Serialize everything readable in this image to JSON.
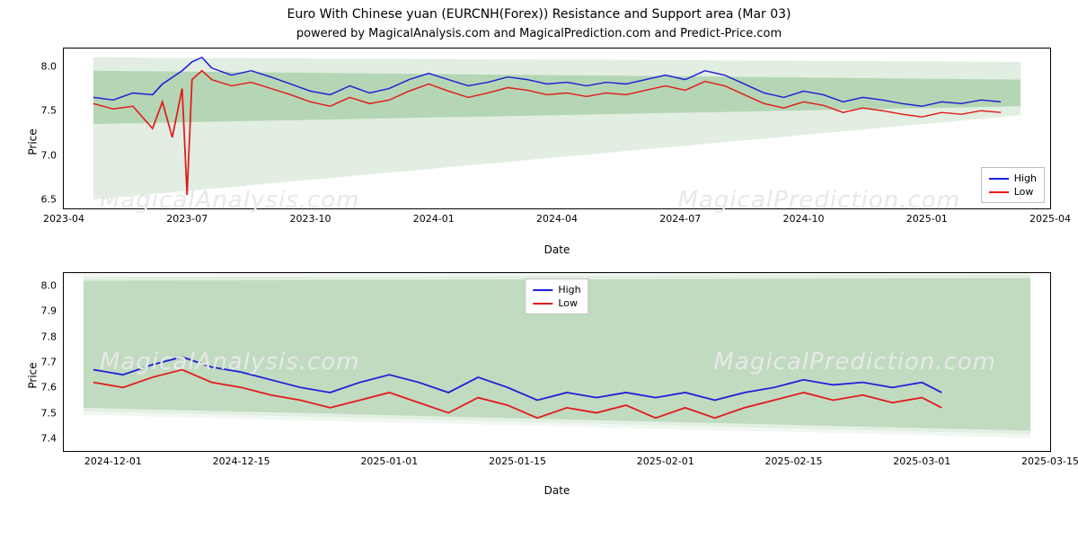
{
  "title": "Euro With Chinese yuan (EURCNH(Forex)) Resistance and Support area (Mar 03)",
  "subtitle": "powered by MagicalAnalysis.com and MagicalPrediction.com and Predict-Price.com",
  "watermarks": [
    "MagicalAnalysis.com",
    "MagicalPrediction.com"
  ],
  "colors": {
    "high": "#1f1fd8",
    "low": "#e41a1c",
    "band_fill": "#c8e0c8",
    "band_fill_dark": "#7fb77f",
    "border": "#000000",
    "text": "#000000",
    "watermark": "#e8e8e8"
  },
  "chart1": {
    "type": "line",
    "ylabel": "Price",
    "xlabel": "Date",
    "ylim": [
      6.4,
      8.2
    ],
    "yticks": [
      6.5,
      7.0,
      7.5,
      8.0
    ],
    "xticks": [
      "2023-04",
      "2023-07",
      "2023-10",
      "2024-01",
      "2024-04",
      "2024-07",
      "2024-10",
      "2025-01",
      "2025-04"
    ],
    "xtick_positions": [
      0.0,
      0.125,
      0.25,
      0.375,
      0.5,
      0.625,
      0.75,
      0.875,
      1.0
    ],
    "legend": [
      {
        "label": "High",
        "color": "#1f1fd8"
      },
      {
        "label": "Low",
        "color": "#e41a1c"
      }
    ],
    "band_top": {
      "y_left_hi": 8.1,
      "y_left_lo": 6.5,
      "y_right_hi": 8.05,
      "y_right_lo": 7.45
    },
    "band_mid": {
      "y_left_hi": 7.95,
      "y_left_lo": 7.35,
      "y_right_hi": 7.85,
      "y_right_lo": 7.55
    },
    "series_high": [
      [
        0.03,
        7.65
      ],
      [
        0.05,
        7.62
      ],
      [
        0.07,
        7.7
      ],
      [
        0.09,
        7.68
      ],
      [
        0.1,
        7.8
      ],
      [
        0.12,
        7.95
      ],
      [
        0.13,
        8.05
      ],
      [
        0.14,
        8.1
      ],
      [
        0.15,
        7.98
      ],
      [
        0.17,
        7.9
      ],
      [
        0.19,
        7.95
      ],
      [
        0.21,
        7.88
      ],
      [
        0.23,
        7.8
      ],
      [
        0.25,
        7.72
      ],
      [
        0.27,
        7.68
      ],
      [
        0.29,
        7.78
      ],
      [
        0.31,
        7.7
      ],
      [
        0.33,
        7.75
      ],
      [
        0.35,
        7.85
      ],
      [
        0.37,
        7.92
      ],
      [
        0.39,
        7.85
      ],
      [
        0.41,
        7.78
      ],
      [
        0.43,
        7.82
      ],
      [
        0.45,
        7.88
      ],
      [
        0.47,
        7.85
      ],
      [
        0.49,
        7.8
      ],
      [
        0.51,
        7.82
      ],
      [
        0.53,
        7.78
      ],
      [
        0.55,
        7.82
      ],
      [
        0.57,
        7.8
      ],
      [
        0.59,
        7.85
      ],
      [
        0.61,
        7.9
      ],
      [
        0.63,
        7.85
      ],
      [
        0.65,
        7.95
      ],
      [
        0.67,
        7.9
      ],
      [
        0.69,
        7.8
      ],
      [
        0.71,
        7.7
      ],
      [
        0.73,
        7.65
      ],
      [
        0.75,
        7.72
      ],
      [
        0.77,
        7.68
      ],
      [
        0.79,
        7.6
      ],
      [
        0.81,
        7.65
      ],
      [
        0.83,
        7.62
      ],
      [
        0.85,
        7.58
      ],
      [
        0.87,
        7.55
      ],
      [
        0.89,
        7.6
      ],
      [
        0.91,
        7.58
      ],
      [
        0.93,
        7.62
      ],
      [
        0.95,
        7.6
      ]
    ],
    "series_low": [
      [
        0.03,
        7.58
      ],
      [
        0.05,
        7.52
      ],
      [
        0.07,
        7.55
      ],
      [
        0.09,
        7.3
      ],
      [
        0.1,
        7.6
      ],
      [
        0.11,
        7.2
      ],
      [
        0.12,
        7.75
      ],
      [
        0.125,
        6.55
      ],
      [
        0.13,
        7.85
      ],
      [
        0.14,
        7.95
      ],
      [
        0.15,
        7.85
      ],
      [
        0.17,
        7.78
      ],
      [
        0.19,
        7.82
      ],
      [
        0.21,
        7.75
      ],
      [
        0.23,
        7.68
      ],
      [
        0.25,
        7.6
      ],
      [
        0.27,
        7.55
      ],
      [
        0.29,
        7.65
      ],
      [
        0.31,
        7.58
      ],
      [
        0.33,
        7.62
      ],
      [
        0.35,
        7.72
      ],
      [
        0.37,
        7.8
      ],
      [
        0.39,
        7.72
      ],
      [
        0.41,
        7.65
      ],
      [
        0.43,
        7.7
      ],
      [
        0.45,
        7.76
      ],
      [
        0.47,
        7.73
      ],
      [
        0.49,
        7.68
      ],
      [
        0.51,
        7.7
      ],
      [
        0.53,
        7.66
      ],
      [
        0.55,
        7.7
      ],
      [
        0.57,
        7.68
      ],
      [
        0.59,
        7.73
      ],
      [
        0.61,
        7.78
      ],
      [
        0.63,
        7.73
      ],
      [
        0.65,
        7.83
      ],
      [
        0.67,
        7.78
      ],
      [
        0.69,
        7.68
      ],
      [
        0.71,
        7.58
      ],
      [
        0.73,
        7.53
      ],
      [
        0.75,
        7.6
      ],
      [
        0.77,
        7.56
      ],
      [
        0.79,
        7.48
      ],
      [
        0.81,
        7.53
      ],
      [
        0.83,
        7.5
      ],
      [
        0.85,
        7.46
      ],
      [
        0.87,
        7.43
      ],
      [
        0.89,
        7.48
      ],
      [
        0.91,
        7.46
      ],
      [
        0.93,
        7.5
      ],
      [
        0.95,
        7.48
      ]
    ]
  },
  "chart2": {
    "type": "line",
    "ylabel": "Price",
    "xlabel": "Date",
    "ylim": [
      7.35,
      8.05
    ],
    "yticks": [
      7.4,
      7.5,
      7.6,
      7.7,
      7.8,
      7.9,
      8.0
    ],
    "xticks": [
      "2024-12-01",
      "2024-12-15",
      "2025-01-01",
      "2025-01-15",
      "2025-02-01",
      "2025-02-15",
      "2025-03-01",
      "2025-03-15"
    ],
    "xtick_positions": [
      0.05,
      0.18,
      0.33,
      0.46,
      0.61,
      0.74,
      0.87,
      1.0
    ],
    "legend": [
      {
        "label": "High",
        "color": "#1f1fd8"
      },
      {
        "label": "Low",
        "color": "#e41a1c"
      }
    ],
    "band": {
      "y_left_hi": 8.02,
      "y_left_lo": 7.52,
      "y_right_hi": 8.03,
      "y_right_lo": 7.43
    },
    "series_high": [
      [
        0.03,
        7.67
      ],
      [
        0.06,
        7.65
      ],
      [
        0.09,
        7.69
      ],
      [
        0.12,
        7.72
      ],
      [
        0.15,
        7.68
      ],
      [
        0.18,
        7.66
      ],
      [
        0.21,
        7.63
      ],
      [
        0.24,
        7.6
      ],
      [
        0.27,
        7.58
      ],
      [
        0.3,
        7.62
      ],
      [
        0.33,
        7.65
      ],
      [
        0.36,
        7.62
      ],
      [
        0.39,
        7.58
      ],
      [
        0.42,
        7.64
      ],
      [
        0.45,
        7.6
      ],
      [
        0.48,
        7.55
      ],
      [
        0.51,
        7.58
      ],
      [
        0.54,
        7.56
      ],
      [
        0.57,
        7.58
      ],
      [
        0.6,
        7.56
      ],
      [
        0.63,
        7.58
      ],
      [
        0.66,
        7.55
      ],
      [
        0.69,
        7.58
      ],
      [
        0.72,
        7.6
      ],
      [
        0.75,
        7.63
      ],
      [
        0.78,
        7.61
      ],
      [
        0.81,
        7.62
      ],
      [
        0.84,
        7.6
      ],
      [
        0.87,
        7.62
      ],
      [
        0.89,
        7.58
      ]
    ],
    "series_low": [
      [
        0.03,
        7.62
      ],
      [
        0.06,
        7.6
      ],
      [
        0.09,
        7.64
      ],
      [
        0.12,
        7.67
      ],
      [
        0.15,
        7.62
      ],
      [
        0.18,
        7.6
      ],
      [
        0.21,
        7.57
      ],
      [
        0.24,
        7.55
      ],
      [
        0.27,
        7.52
      ],
      [
        0.3,
        7.55
      ],
      [
        0.33,
        7.58
      ],
      [
        0.36,
        7.54
      ],
      [
        0.39,
        7.5
      ],
      [
        0.42,
        7.56
      ],
      [
        0.45,
        7.53
      ],
      [
        0.48,
        7.48
      ],
      [
        0.51,
        7.52
      ],
      [
        0.54,
        7.5
      ],
      [
        0.57,
        7.53
      ],
      [
        0.6,
        7.48
      ],
      [
        0.63,
        7.52
      ],
      [
        0.66,
        7.48
      ],
      [
        0.69,
        7.52
      ],
      [
        0.72,
        7.55
      ],
      [
        0.75,
        7.58
      ],
      [
        0.78,
        7.55
      ],
      [
        0.81,
        7.57
      ],
      [
        0.84,
        7.54
      ],
      [
        0.87,
        7.56
      ],
      [
        0.89,
        7.52
      ]
    ]
  }
}
